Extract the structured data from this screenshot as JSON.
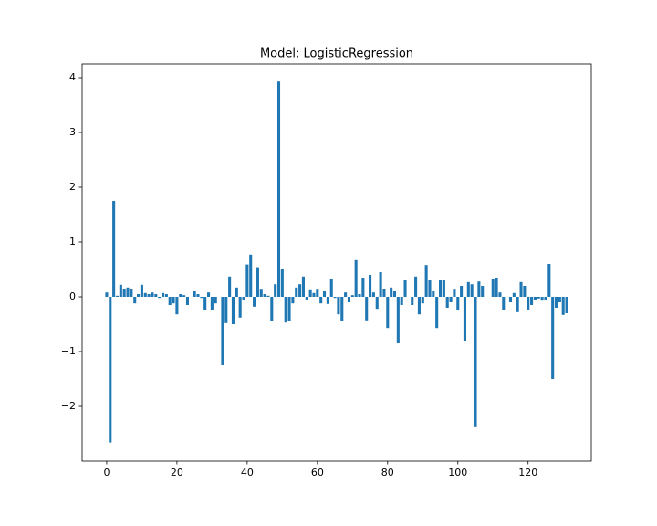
{
  "chart_data": {
    "type": "bar",
    "title": "Model: LogisticRegression",
    "x": [
      0,
      1,
      2,
      3,
      4,
      5,
      6,
      7,
      8,
      9,
      10,
      11,
      12,
      13,
      14,
      15,
      16,
      17,
      18,
      19,
      20,
      21,
      22,
      23,
      24,
      25,
      26,
      27,
      28,
      29,
      30,
      31,
      32,
      33,
      34,
      35,
      36,
      37,
      38,
      39,
      40,
      41,
      42,
      43,
      44,
      45,
      46,
      47,
      48,
      49,
      50,
      51,
      52,
      53,
      54,
      55,
      56,
      57,
      58,
      59,
      60,
      61,
      62,
      63,
      64,
      65,
      66,
      67,
      68,
      69,
      70,
      71,
      72,
      73,
      74,
      75,
      76,
      77,
      78,
      79,
      80,
      81,
      82,
      83,
      84,
      85,
      86,
      87,
      88,
      89,
      90,
      91,
      92,
      93,
      94,
      95,
      96,
      97,
      98,
      99,
      100,
      101,
      102,
      103,
      104,
      105,
      106,
      107,
      108,
      109,
      110,
      111,
      112,
      113,
      114,
      115,
      116,
      117,
      118,
      119,
      120,
      121,
      122,
      123,
      124,
      125,
      126,
      127,
      128,
      129,
      130,
      131
    ],
    "values": [
      0.08,
      -2.66,
      1.75,
      0.02,
      0.22,
      0.15,
      0.17,
      0.15,
      -0.12,
      0.05,
      0.22,
      0.07,
      0.05,
      0.08,
      0.05,
      -0.02,
      0.07,
      0.05,
      -0.15,
      -0.12,
      -0.32,
      0.05,
      0.03,
      -0.15,
      0.0,
      0.1,
      0.05,
      -0.02,
      -0.25,
      0.08,
      -0.25,
      -0.12,
      0.0,
      -1.25,
      -0.48,
      0.37,
      -0.5,
      0.17,
      -0.38,
      -0.05,
      0.59,
      0.77,
      -0.18,
      0.54,
      0.13,
      0.05,
      0.02,
      -0.45,
      0.23,
      3.93,
      0.5,
      -0.47,
      -0.45,
      -0.12,
      0.17,
      0.23,
      0.37,
      -0.05,
      0.12,
      0.07,
      0.13,
      -0.12,
      0.1,
      -0.13,
      0.33,
      -0.02,
      -0.32,
      -0.45,
      0.08,
      -0.1,
      0.03,
      0.67,
      0.05,
      0.35,
      -0.43,
      0.4,
      0.08,
      -0.22,
      0.45,
      0.15,
      -0.57,
      0.17,
      0.1,
      -0.85,
      -0.15,
      0.3,
      0.0,
      -0.15,
      0.37,
      -0.32,
      -0.12,
      0.58,
      0.3,
      0.1,
      -0.57,
      0.3,
      0.3,
      -0.2,
      -0.1,
      0.13,
      -0.25,
      0.2,
      -0.8,
      0.27,
      0.23,
      -2.38,
      0.28,
      0.2,
      0.0,
      0.0,
      0.33,
      0.35,
      0.08,
      -0.25,
      0.0,
      -0.1,
      0.07,
      -0.28,
      0.27,
      0.2,
      -0.25,
      -0.15,
      -0.05,
      -0.03,
      -0.07,
      -0.05,
      0.6,
      -1.5,
      -0.2,
      -0.1,
      -0.33,
      -0.3
    ],
    "color": "#1f77b4",
    "xlim": [
      -7,
      138
    ],
    "xticks": [
      0,
      20,
      40,
      60,
      80,
      100,
      120
    ],
    "ylim": [
      -3.0,
      4.25
    ],
    "yticks": [
      {
        "value": -2,
        "label": "−2"
      },
      {
        "value": -1,
        "label": "−1"
      },
      0,
      1,
      2,
      3,
      4
    ]
  }
}
